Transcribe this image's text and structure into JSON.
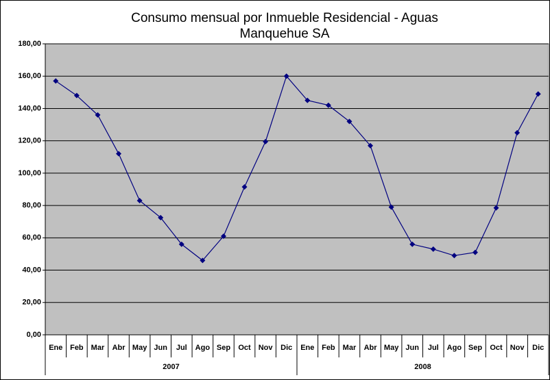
{
  "chart_data": {
    "type": "line",
    "title": [
      "Consumo mensual por Inmueble Residencial - Aguas",
      "Manquehue SA"
    ],
    "categories": [
      "Ene",
      "Feb",
      "Mar",
      "Abr",
      "May",
      "Jun",
      "Jul",
      "Ago",
      "Sep",
      "Oct",
      "Nov",
      "Dic",
      "Ene",
      "Feb",
      "Mar",
      "Abr",
      "May",
      "Jun",
      "Jul",
      "Ago",
      "Sep",
      "Oct",
      "Nov",
      "Dic"
    ],
    "groups": [
      "2007",
      "2008"
    ],
    "values": [
      157,
      148,
      136,
      112,
      83,
      72.5,
      56,
      46,
      61,
      91.5,
      119.5,
      160,
      145,
      142,
      132,
      117,
      79,
      56,
      53,
      49,
      51,
      78.5,
      125,
      149
    ],
    "color": "#000080",
    "ylim": [
      0,
      180
    ],
    "yticks": [
      {
        "value": 0,
        "label": "0,00"
      },
      {
        "value": 20,
        "label": "20,00"
      },
      {
        "value": 40,
        "label": "40,00"
      },
      {
        "value": 60,
        "label": "60,00"
      },
      {
        "value": 80,
        "label": "80,00"
      },
      {
        "value": 100,
        "label": "100,00"
      },
      {
        "value": 120,
        "label": "120,00"
      },
      {
        "value": 140,
        "label": "140,00"
      },
      {
        "value": 160,
        "label": "160,00"
      },
      {
        "value": 180,
        "label": "180,00"
      }
    ],
    "grid": true,
    "plot_background": "#c0c0c0"
  }
}
